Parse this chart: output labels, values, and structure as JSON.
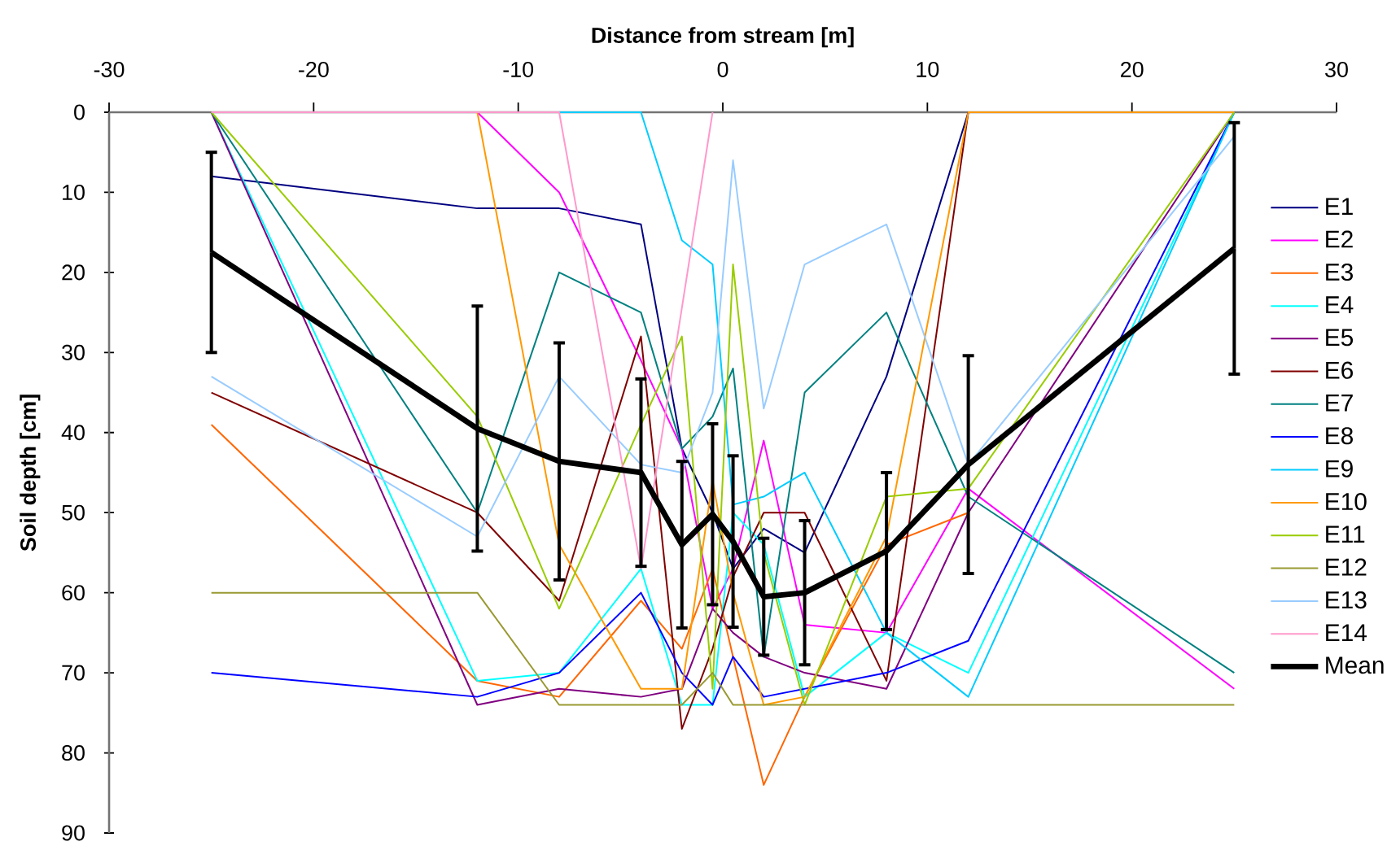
{
  "chart_data": {
    "type": "line",
    "xlabel": "Distance from stream [m]",
    "ylabel": "Soil depth [cm]",
    "x": [
      -25,
      -12,
      -8,
      -4,
      -2,
      -0.5,
      0.5,
      2,
      4,
      8,
      12,
      25
    ],
    "xlim": [
      -30,
      30
    ],
    "xticks": [
      -30,
      -20,
      -10,
      0,
      10,
      20,
      30
    ],
    "ylim": [
      90,
      0
    ],
    "yticks": [
      0,
      10,
      20,
      30,
      40,
      50,
      60,
      70,
      80,
      90
    ],
    "legend": "right",
    "marker": "none",
    "line_style": "solid",
    "series": [
      {
        "name": "E1",
        "color": "#000080",
        "values": [
          8,
          12,
          12,
          14,
          42,
          50,
          57,
          52,
          55,
          33,
          0,
          null
        ]
      },
      {
        "name": "E2",
        "color": "#FF00FF",
        "values": [
          null,
          0,
          10,
          31,
          42,
          62,
          57,
          41,
          64,
          65,
          47,
          72
        ]
      },
      {
        "name": "E3",
        "color": "#FF6600",
        "values": [
          39,
          71,
          73,
          61,
          67,
          57,
          68,
          84,
          73,
          54,
          50,
          null
        ]
      },
      {
        "name": "E4",
        "color": "#00FFFF",
        "values": [
          0,
          71,
          70,
          57,
          74,
          74,
          50,
          54,
          73,
          65,
          70,
          0
        ]
      },
      {
        "name": "E5",
        "color": "#800080",
        "values": [
          0,
          74,
          72,
          73,
          72,
          62,
          65,
          68,
          70,
          72,
          50,
          0
        ]
      },
      {
        "name": "E6",
        "color": "#800000",
        "values": [
          35,
          50,
          61,
          28,
          77,
          67,
          58,
          50,
          50,
          71,
          0,
          null
        ]
      },
      {
        "name": "E7",
        "color": "#008080",
        "values": [
          0,
          50,
          20,
          25,
          42,
          38,
          32,
          68,
          35,
          25,
          48,
          70
        ]
      },
      {
        "name": "E8",
        "color": "#0000FF",
        "values": [
          70,
          73,
          70,
          60,
          70,
          74,
          68,
          73,
          72,
          70,
          66,
          0
        ]
      },
      {
        "name": "E9",
        "color": "#00CCFF",
        "values": [
          null,
          null,
          0,
          0,
          16,
          19,
          49,
          48,
          45,
          65,
          73,
          0
        ]
      },
      {
        "name": "E10",
        "color": "#FF9900",
        "values": [
          null,
          0,
          54,
          72,
          72,
          46,
          60,
          74,
          73,
          53,
          0,
          0
        ]
      },
      {
        "name": "E11",
        "color": "#99CC00",
        "values": [
          0,
          38,
          62,
          39,
          28,
          72,
          19,
          55,
          74,
          48,
          47,
          0
        ]
      },
      {
        "name": "E12",
        "color": "#999933",
        "values": [
          60,
          60,
          74,
          74,
          74,
          70,
          74,
          74,
          74,
          74,
          74,
          74
        ]
      },
      {
        "name": "E13",
        "color": "#99CCFF",
        "values": [
          33,
          53,
          33,
          44,
          45,
          35,
          6,
          37,
          19,
          14,
          44,
          3
        ]
      },
      {
        "name": "E14",
        "color": "#FF99CC",
        "x": [
          -25,
          -12,
          -8,
          -4,
          -0.5
        ],
        "values": [
          0,
          0,
          0,
          57,
          0
        ]
      },
      {
        "name": "Mean",
        "color": "#000000",
        "values": [
          17.5,
          39.5,
          43.6,
          45,
          54,
          50.2,
          53.6,
          60.5,
          60,
          54.8,
          44,
          17
        ],
        "errors": [
          12.5,
          15.3,
          14.8,
          11.7,
          10.4,
          11.3,
          10.7,
          7.3,
          9,
          9.8,
          13.6,
          15.7
        ]
      }
    ]
  }
}
